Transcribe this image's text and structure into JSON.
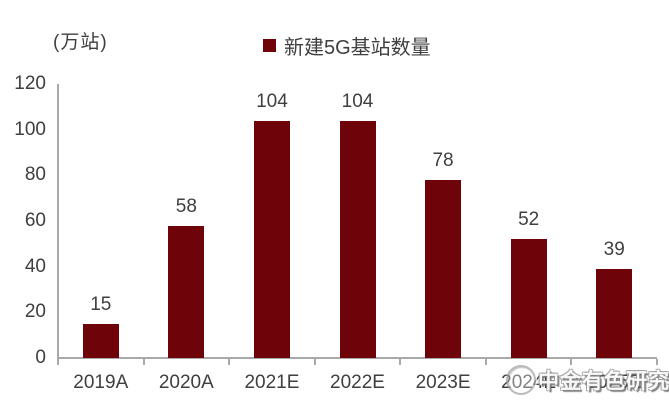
{
  "unit_label": "(万站)",
  "legend": {
    "label": "新建5G基站数量",
    "marker_color": "#6e0409"
  },
  "watermark": {
    "text": "中金有色研究"
  },
  "colors": {
    "bar": "#6e0409",
    "text": "#3f3f3f",
    "axis": "#a9a9a9"
  },
  "chart_data": {
    "type": "bar",
    "title": "",
    "series_name": "新建5G基站数量",
    "categories": [
      "2019A",
      "2020A",
      "2021E",
      "2022E",
      "2023E",
      "2024E",
      "2025E"
    ],
    "values": [
      15,
      58,
      104,
      104,
      78,
      52,
      39
    ],
    "xlabel": "",
    "ylabel": "(万站)",
    "ylim": [
      0,
      120
    ],
    "ytick_step": 20,
    "yticks": [
      0,
      20,
      40,
      60,
      80,
      100,
      120
    ],
    "grid": false,
    "legend_position": "top-center",
    "bar_color": "#6e0409",
    "value_labels_shown": true
  }
}
